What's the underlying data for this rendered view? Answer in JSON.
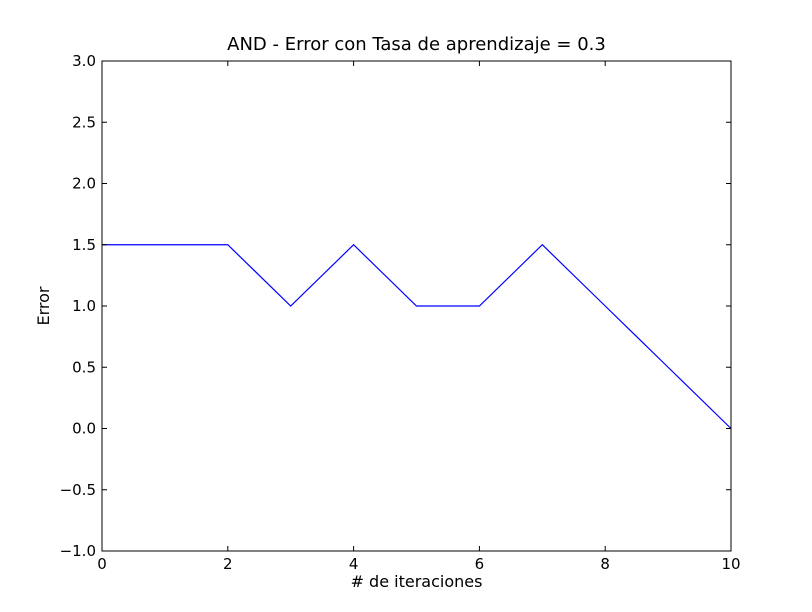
{
  "chart_data": {
    "type": "line",
    "title": "AND - Error con Tasa de aprendizaje = 0.3",
    "xlabel": "# de iteraciones",
    "ylabel": "Error",
    "xlim": [
      0,
      10
    ],
    "ylim": [
      -1.0,
      3.0
    ],
    "x_ticks": [
      0,
      2,
      4,
      6,
      8,
      10
    ],
    "x_tick_labels": [
      "0",
      "2",
      "4",
      "6",
      "8",
      "10"
    ],
    "y_ticks": [
      -1.0,
      -0.5,
      0.0,
      0.5,
      1.0,
      1.5,
      2.0,
      2.5,
      3.0
    ],
    "y_tick_labels": [
      "−1.0",
      "−0.5",
      "0.0",
      "0.5",
      "1.0",
      "1.5",
      "2.0",
      "2.5",
      "3.0"
    ],
    "grid": false,
    "legend": "none",
    "series": [
      {
        "color": "#0000ff",
        "x": [
          0,
          1,
          2,
          3,
          4,
          5,
          6,
          7,
          8,
          9,
          10
        ],
        "values": [
          1.5,
          1.5,
          1.5,
          1.0,
          1.5,
          1.0,
          1.0,
          1.5,
          1.0,
          0.5,
          0.0
        ]
      }
    ]
  }
}
